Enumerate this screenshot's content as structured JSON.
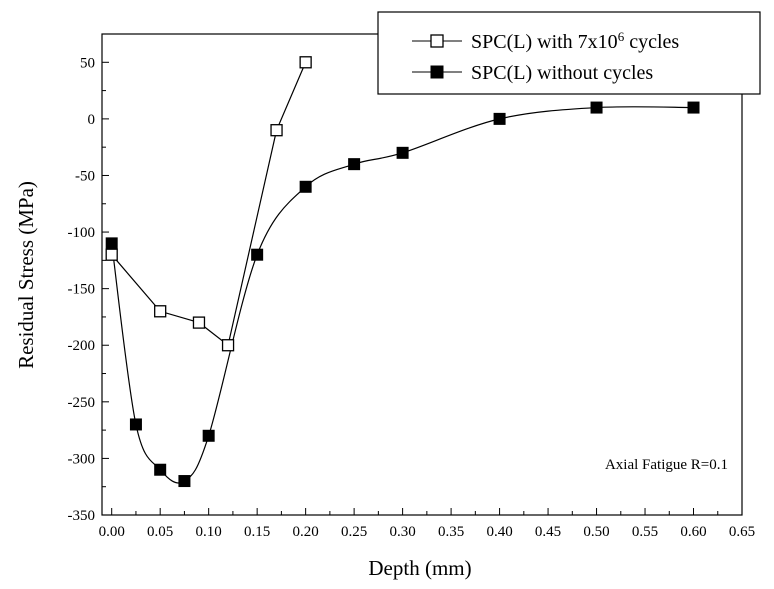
{
  "chart_data": {
    "type": "scatter",
    "xlabel": "Depth (mm)",
    "ylabel": "Residual Stress (MPa)",
    "xlim": [
      -0.01,
      0.65
    ],
    "ylim": [
      -350,
      75
    ],
    "x_ticks": [
      0.0,
      0.05,
      0.1,
      0.15,
      0.2,
      0.25,
      0.3,
      0.35,
      0.4,
      0.45,
      0.5,
      0.55,
      0.6,
      0.65
    ],
    "x_tick_labels": [
      "0.00",
      "0.05",
      "0.10",
      "0.15",
      "0.20",
      "0.25",
      "0.30",
      "0.35",
      "0.40",
      "0.45",
      "0.50",
      "0.55",
      "0.60",
      "0.65"
    ],
    "y_ticks": [
      50,
      0,
      -50,
      -100,
      -150,
      -200,
      -250,
      -300,
      -350
    ],
    "y_tick_labels": [
      "50",
      "0",
      "-50",
      "-100",
      "-150",
      "-200",
      "-250",
      "-300",
      "-350"
    ],
    "annotation": "Axial Fatigue R=0.1",
    "legend_position": "top-right",
    "grid": false,
    "series": [
      {
        "name": "SPC(L) with 7x10^6 cycles",
        "name_main": "SPC(L) with 7x10",
        "name_sup": "6",
        "name_tail": " cycles",
        "marker": "open-square",
        "line": "straight",
        "color": "#000000",
        "x": [
          0.0,
          0.05,
          0.09,
          0.12,
          0.17,
          0.2
        ],
        "y": [
          -120,
          -170,
          -180,
          -200,
          -10,
          50
        ]
      },
      {
        "name": "SPC(L) without cycles",
        "marker": "filled-square",
        "line": "smooth",
        "color": "#000000",
        "x": [
          0.0,
          0.025,
          0.05,
          0.075,
          0.1,
          0.15,
          0.2,
          0.25,
          0.3,
          0.4,
          0.5,
          0.6
        ],
        "y": [
          -110,
          -270,
          -310,
          -320,
          -280,
          -120,
          -60,
          -40,
          -30,
          0,
          10,
          10
        ]
      }
    ]
  }
}
